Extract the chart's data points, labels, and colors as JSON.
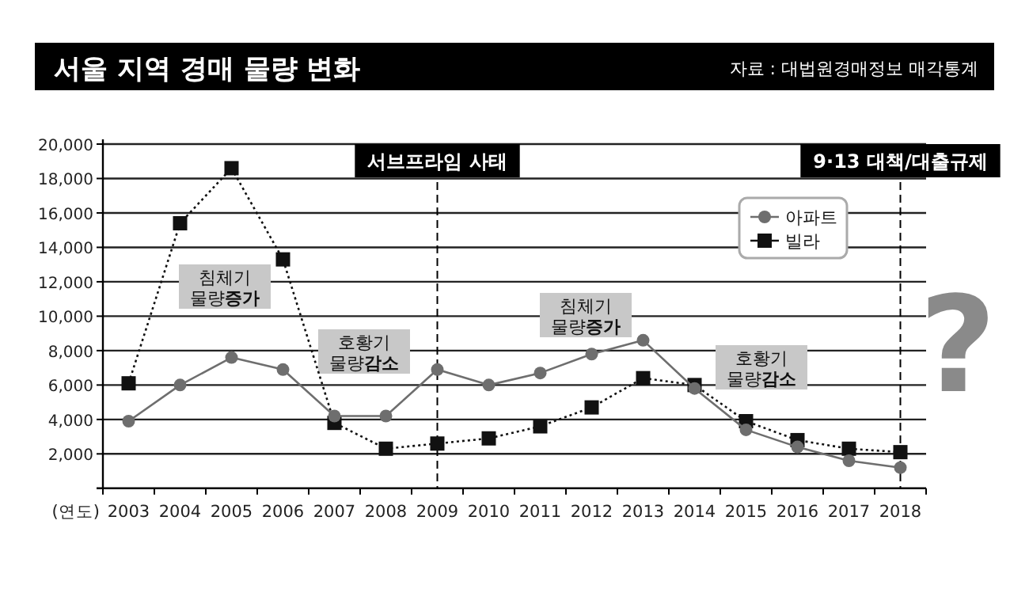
{
  "chart_data": {
    "type": "line",
    "title": "서울 지역 경매 물량 변화",
    "xlabel": "(연도)",
    "categories": [
      "2003",
      "2004",
      "2005",
      "2006",
      "2007",
      "2008",
      "2009",
      "2010",
      "2011",
      "2012",
      "2013",
      "2014",
      "2015",
      "2016",
      "2017",
      "2018"
    ],
    "series": [
      {
        "name": "아파트",
        "color": "#6e6e6e",
        "marker": "circle",
        "line_style": "solid",
        "values": [
          3900,
          6000,
          7600,
          6900,
          4200,
          4200,
          6900,
          6000,
          6700,
          7800,
          8600,
          5800,
          3400,
          2400,
          1600,
          1200
        ]
      },
      {
        "name": "빌라",
        "color": "#111111",
        "marker": "square",
        "line_style": "dotted",
        "values": [
          6100,
          15400,
          18600,
          13300,
          3800,
          2300,
          2600,
          2900,
          3600,
          4700,
          6400,
          6000,
          3900,
          2800,
          2300,
          2100
        ]
      }
    ],
    "ylim": [
      0,
      20000
    ],
    "yticks": [
      {
        "value": 2000,
        "label": "2,000"
      },
      {
        "value": 4000,
        "label": "4,000"
      },
      {
        "value": 6000,
        "label": "6,000"
      },
      {
        "value": 8000,
        "label": "8,000"
      },
      {
        "value": 10000,
        "label": "10,000"
      },
      {
        "value": 12000,
        "label": "12,000"
      },
      {
        "value": 14000,
        "label": "14,000"
      },
      {
        "value": 16000,
        "label": "16,000"
      },
      {
        "value": 18000,
        "label": "18,000"
      },
      {
        "value": 20000,
        "label": "20,000"
      }
    ],
    "grid": "y",
    "legend": "top right",
    "ref_lines": [
      {
        "axis": "x",
        "value": "2009",
        "label": "서브프라임 사태",
        "line_style": "dashed"
      },
      {
        "axis": "x",
        "value": "2018",
        "label": "9·13 대책/대출규제",
        "line_style": "dashed"
      }
    ],
    "annotations": [
      "자료 : 대법원경매정보 매각통계",
      "침체기 물량**증가**",
      "호황기 물량**감소**",
      "침체기 물량**증가**",
      "호황기 물량**감소**",
      "?"
    ]
  }
}
